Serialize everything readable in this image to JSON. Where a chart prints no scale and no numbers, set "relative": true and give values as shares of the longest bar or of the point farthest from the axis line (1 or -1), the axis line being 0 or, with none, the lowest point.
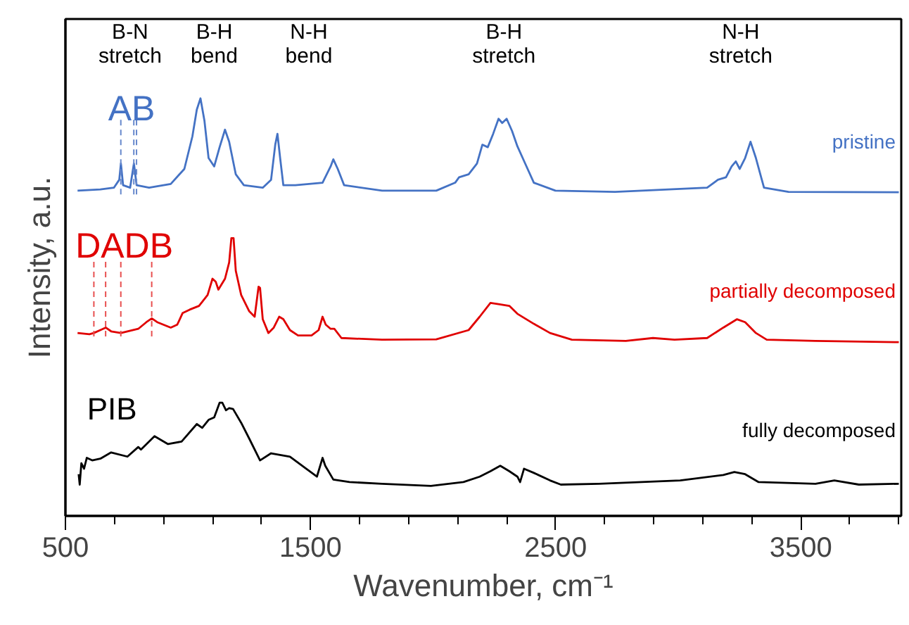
{
  "chart_data": {
    "type": "line",
    "relative": true,
    "xlabel": "Wavenumber, cm⁻¹",
    "ylabel": "Intensity, a.u.",
    "xlim": [
      500,
      3910
    ],
    "xticks": [
      500,
      1500,
      2500,
      3500
    ],
    "grid": false,
    "series": [
      {
        "name": "pristine",
        "color": "#4472c4",
        "x": [
          549.5,
          642.3,
          697.6,
          719.7,
          726.3,
          735.2,
          763.9,
          779.4,
          790.4,
          841.3,
          929.7,
          985.2,
          1018,
          1036,
          1051,
          1067,
          1084,
          1107,
          1129,
          1151,
          1168,
          1195,
          1228,
          1305,
          1339,
          1356,
          1365,
          1376,
          1389,
          1438,
          1549,
          1582,
          1593,
          1611,
          1637,
          1792,
          2013,
          2090,
          2106,
          2145,
          2179,
          2201,
          2223,
          2245,
          2267,
          2282,
          2300,
          2322,
          2344,
          2371,
          2411,
          2499,
          2742,
          3118,
          3162,
          3195,
          3218,
          3235,
          3251,
          3273,
          3295,
          3317,
          3350,
          3450,
          3900
        ],
        "values": [
          0.779,
          0.782,
          0.786,
          0.805,
          0.844,
          0.792,
          0.786,
          0.844,
          0.792,
          0.786,
          0.795,
          0.831,
          0.909,
          0.973,
          1.0,
          0.947,
          0.857,
          0.837,
          0.883,
          0.925,
          0.896,
          0.818,
          0.792,
          0.786,
          0.805,
          0.889,
          0.915,
          0.857,
          0.792,
          0.792,
          0.798,
          0.837,
          0.854,
          0.831,
          0.792,
          0.779,
          0.779,
          0.798,
          0.811,
          0.818,
          0.844,
          0.889,
          0.883,
          0.915,
          0.951,
          0.941,
          0.951,
          0.922,
          0.885,
          0.85,
          0.798,
          0.779,
          0.776,
          0.786,
          0.805,
          0.811,
          0.837,
          0.849,
          0.831,
          0.857,
          0.896,
          0.857,
          0.786,
          0.776,
          0.775
        ]
      },
      {
        "name": "partially decomposed",
        "color": "#e00000",
        "x": [
          549.5,
          598.1,
          615.8,
          642.3,
          664.4,
          686.5,
          726.3,
          797.1,
          830.2,
          852.3,
          874.4,
          929.7,
          956.2,
          978.3,
          1007,
          1045,
          1080,
          1100,
          1113,
          1124,
          1151,
          1168,
          1177,
          1186,
          1195,
          1217,
          1250,
          1272,
          1288,
          1294,
          1305,
          1328,
          1350,
          1372,
          1389,
          1416,
          1449,
          1504,
          1533,
          1549,
          1562,
          1582,
          1597,
          1626,
          1792,
          2013,
          2145,
          2190,
          2234,
          2267,
          2311,
          2344,
          2411,
          2477,
          2566,
          2786,
          2897,
          2985,
          3118,
          3184,
          3240,
          3273,
          3317,
          3361,
          3560,
          3900
        ],
        "values": [
          0.438,
          0.435,
          0.438,
          0.445,
          0.451,
          0.442,
          0.438,
          0.448,
          0.464,
          0.473,
          0.464,
          0.451,
          0.458,
          0.486,
          0.494,
          0.503,
          0.529,
          0.568,
          0.561,
          0.542,
          0.568,
          0.607,
          0.665,
          0.665,
          0.587,
          0.529,
          0.49,
          0.477,
          0.549,
          0.546,
          0.471,
          0.438,
          0.451,
          0.477,
          0.471,
          0.445,
          0.432,
          0.432,
          0.445,
          0.477,
          0.458,
          0.448,
          0.448,
          0.426,
          0.422,
          0.423,
          0.445,
          0.477,
          0.51,
          0.507,
          0.503,
          0.484,
          0.46,
          0.438,
          0.422,
          0.419,
          0.426,
          0.422,
          0.426,
          0.451,
          0.471,
          0.464,
          0.438,
          0.422,
          0.419,
          0.416
        ]
      },
      {
        "name": "fully decomposed",
        "color": "#000000",
        "x": [
          553.9,
          558.3,
          565.0,
          576.0,
          587.1,
          609.2,
          642.3,
          686.5,
          752.9,
          797.1,
          808.1,
          863.4,
          918.6,
          973.9,
          1036,
          1058,
          1084,
          1107,
          1129,
          1140,
          1155,
          1168,
          1184,
          1217,
          1250,
          1294,
          1339,
          1416,
          1482,
          1526,
          1549,
          1560,
          1593,
          1659,
          1792,
          1991,
          2124,
          2190,
          2234,
          2274,
          2311,
          2344,
          2355,
          2371,
          2411,
          2477,
          2521,
          2676,
          3008,
          3184,
          3229,
          3273,
          3328,
          3560,
          3637,
          3737,
          3900
        ],
        "values": [
          0.1,
          0.075,
          0.126,
          0.113,
          0.139,
          0.133,
          0.137,
          0.152,
          0.142,
          0.165,
          0.159,
          0.191,
          0.172,
          0.178,
          0.22,
          0.211,
          0.23,
          0.236,
          0.271,
          0.271,
          0.253,
          0.258,
          0.256,
          0.223,
          0.185,
          0.133,
          0.15,
          0.142,
          0.113,
          0.094,
          0.139,
          0.12,
          0.087,
          0.081,
          0.077,
          0.072,
          0.081,
          0.094,
          0.107,
          0.12,
          0.107,
          0.094,
          0.081,
          0.113,
          0.103,
          0.085,
          0.075,
          0.077,
          0.085,
          0.098,
          0.105,
          0.1,
          0.081,
          0.077,
          0.085,
          0.075,
          0.077
        ]
      },
      {
        "color": "#6688cc",
        "line_style": "dashed",
        "x": [
          726,
          726
        ],
        "values": [
          0.77,
          0.95
        ]
      },
      {
        "color": "#6688cc",
        "line_style": "dashed",
        "x": [
          779,
          779
        ],
        "values": [
          0.77,
          0.95
        ]
      },
      {
        "color": "#6688cc",
        "line_style": "dashed",
        "x": [
          790,
          790
        ],
        "values": [
          0.77,
          0.95
        ]
      },
      {
        "color": "#e85050",
        "line_style": "dashed",
        "x": [
          616,
          616
        ],
        "values": [
          0.43,
          0.61
        ]
      },
      {
        "color": "#e85050",
        "line_style": "dashed",
        "x": [
          664,
          664
        ],
        "values": [
          0.43,
          0.61
        ]
      },
      {
        "color": "#e85050",
        "line_style": "dashed",
        "x": [
          726,
          726
        ],
        "values": [
          0.43,
          0.61
        ]
      },
      {
        "color": "#e85050",
        "line_style": "dashed",
        "x": [
          852,
          852
        ],
        "values": [
          0.43,
          0.61
        ]
      }
    ],
    "annotations": [
      "B-N\nstretch",
      "B-H\nbend",
      "N-H\nbend",
      "B-H\nstretch",
      "N-H\nstretch",
      "AB",
      "DADB",
      "PIB"
    ]
  }
}
